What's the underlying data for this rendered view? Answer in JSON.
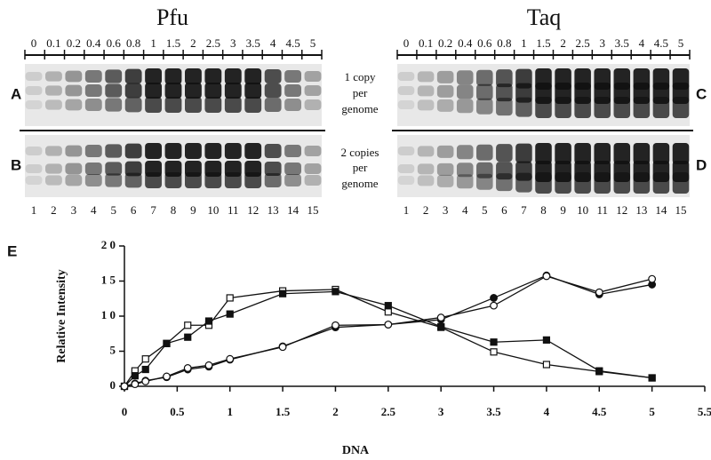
{
  "panels": {
    "pfu": {
      "title": "Pfu",
      "lane_amounts": [
        "0",
        "0.1",
        "0.2",
        "0.4",
        "0.6",
        "0.8",
        "1",
        "1.5",
        "2",
        "2.5",
        "3",
        "3.5",
        "4",
        "4.5",
        "5"
      ],
      "lane_numbers": [
        1,
        2,
        3,
        4,
        5,
        6,
        7,
        8,
        9,
        10,
        11,
        12,
        13,
        14,
        15
      ],
      "letters": [
        "A",
        "B"
      ]
    },
    "taq": {
      "title": "Taq",
      "lane_amounts": [
        "0",
        "0.1",
        "0.2",
        "0.4",
        "0.6",
        "0.8",
        "1",
        "1.5",
        "2",
        "2.5",
        "3",
        "3.5",
        "4",
        "4.5",
        "5"
      ],
      "lane_numbers": [
        1,
        2,
        3,
        4,
        5,
        6,
        7,
        8,
        9,
        10,
        11,
        12,
        13,
        14,
        15
      ],
      "letters": [
        "C",
        "D"
      ]
    },
    "middle": {
      "one_copy": [
        "1 copy",
        "per",
        "genome"
      ],
      "two_copies": [
        "2 copies",
        "per",
        "genome"
      ]
    }
  },
  "chart_data": {
    "type": "line",
    "letter": "E",
    "x_label": "DNA",
    "y_label": "Relative Intensity",
    "x": [
      0,
      0.1,
      0.2,
      0.4,
      0.6,
      0.8,
      1,
      1.5,
      2,
      2.5,
      3,
      3.5,
      4,
      4.5,
      5
    ],
    "series": [
      {
        "marker": "square-open",
        "color": "#111111",
        "values": [
          0,
          2.2,
          3.9,
          6.1,
          8.7,
          8.7,
          12.6,
          13.6,
          13.8,
          10.6,
          8.4,
          4.9,
          3.1,
          2.1,
          1.2
        ]
      },
      {
        "marker": "square-filled",
        "color": "#111111",
        "values": [
          0,
          1.5,
          2.4,
          6.1,
          7.0,
          9.3,
          10.3,
          13.2,
          13.5,
          11.5,
          8.5,
          6.3,
          6.6,
          2.2,
          1.2
        ]
      },
      {
        "marker": "circle-filled",
        "color": "#111111",
        "values": [
          0,
          0.4,
          0.8,
          1.3,
          2.4,
          2.8,
          3.8,
          5.7,
          8.4,
          8.8,
          9.5,
          12.6,
          15.8,
          13.1,
          14.5
        ]
      },
      {
        "marker": "circle-open",
        "color": "#111111",
        "values": [
          0,
          0.3,
          0.7,
          1.4,
          2.6,
          3.0,
          3.9,
          5.6,
          8.7,
          8.8,
          9.8,
          11.5,
          15.7,
          13.4,
          15.3
        ]
      }
    ],
    "xlim": [
      0,
      5.5
    ],
    "xticks": [
      0,
      0.5,
      1,
      1.5,
      2,
      2.5,
      3,
      3.5,
      4,
      4.5,
      5,
      5.5
    ],
    "ylim": [
      0,
      20
    ],
    "yticks": [
      0,
      5,
      {
        "value": 10,
        "label": "1 0"
      },
      {
        "value": 15,
        "label": "1 5"
      },
      {
        "value": 20,
        "label": "2 0"
      }
    ]
  }
}
